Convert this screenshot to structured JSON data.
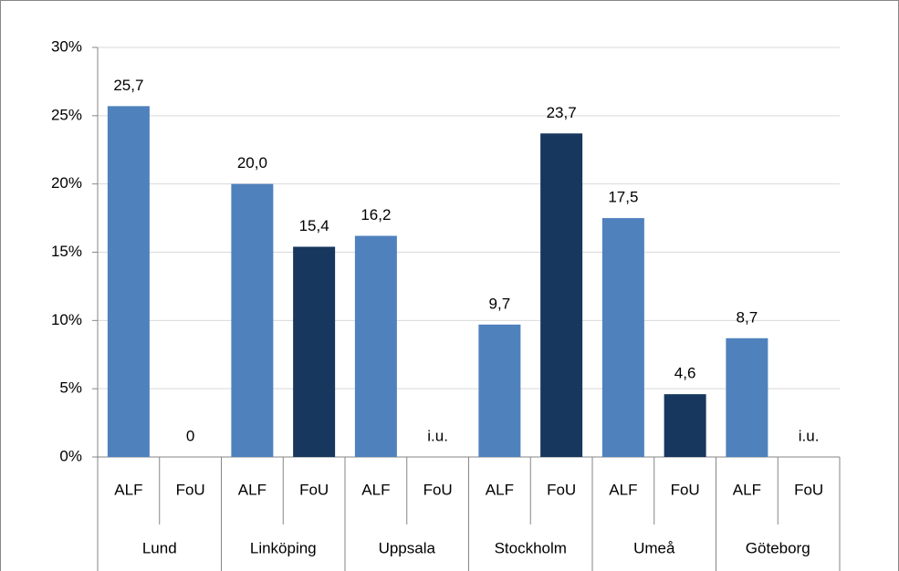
{
  "chart_data": {
    "type": "bar",
    "categories": [
      "ALF",
      "FoU",
      "ALF",
      "FoU",
      "ALF",
      "FoU",
      "ALF",
      "FoU",
      "ALF",
      "FoU",
      "ALF",
      "FoU"
    ],
    "groups": [
      "Lund",
      "Linköping",
      "Uppsala",
      "Stockholm",
      "Umeå",
      "Göteborg"
    ],
    "values": [
      25.7,
      0,
      20.0,
      15.4,
      16.2,
      null,
      9.7,
      23.7,
      17.5,
      4.6,
      8.7,
      null
    ],
    "value_labels": [
      "25,7",
      "0",
      "20,0",
      "15,4",
      "16,2",
      "i.u.",
      "9,7",
      "23,7",
      "17,5",
      "4,6",
      "8,7",
      "i.u."
    ],
    "colors": [
      "#4f81bd",
      "#17375e"
    ],
    "ylim": [
      0,
      30
    ],
    "yticks": [
      {
        "value": 0,
        "label": "0%"
      },
      {
        "value": 5,
        "label": "5%"
      },
      {
        "value": 10,
        "label": "10%"
      },
      {
        "value": 15,
        "label": "15%"
      },
      {
        "value": 20,
        "label": "20%"
      },
      {
        "value": 25,
        "label": "25%"
      },
      {
        "value": 30,
        "label": "30%"
      }
    ],
    "grid": true
  }
}
